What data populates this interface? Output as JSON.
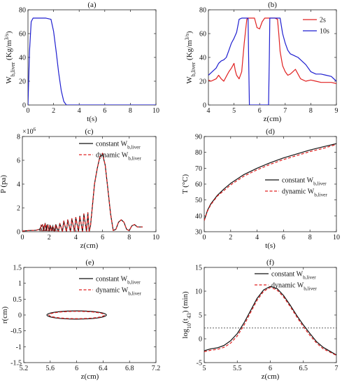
{
  "chart_data": [
    {
      "panel": "(a)",
      "type": "line",
      "xlabel": "t(s)",
      "ylabel": "W_b,liver (Kg/m^3/s)",
      "xlim": [
        0,
        10
      ],
      "ylim": [
        0,
        80
      ],
      "xticks": [
        0,
        2,
        4,
        6,
        8,
        10
      ],
      "yticks": [
        0,
        20,
        40,
        60,
        80
      ],
      "series": [
        {
          "color": "#1f1fd0",
          "style": "solid",
          "x": [
            0,
            0.12,
            0.25,
            0.4,
            0.6,
            1.4,
            1.8,
            2.0,
            2.2,
            2.4,
            2.6,
            2.8,
            3.0,
            10
          ],
          "y": [
            0,
            45,
            70,
            73,
            73,
            73,
            72,
            62,
            45,
            27,
            12,
            3,
            0,
            0
          ]
        }
      ]
    },
    {
      "panel": "(b)",
      "type": "line",
      "xlabel": "z(cm)",
      "ylabel": "W_b,liver (Kg/m^3/s)",
      "xlim": [
        4,
        9
      ],
      "ylim": [
        0,
        80
      ],
      "xticks": [
        4,
        5,
        6,
        7,
        8,
        9
      ],
      "yticks": [
        0,
        20,
        40,
        60,
        80
      ],
      "legend": "top-right",
      "series": [
        {
          "name": "2s",
          "color": "#e02020",
          "x": [
            4,
            4.1,
            4.2,
            4.3,
            4.4,
            4.5,
            4.6,
            4.7,
            4.8,
            4.9,
            5.0,
            5.05,
            5.1,
            5.2,
            5.3,
            5.4,
            5.5,
            5.55,
            5.6,
            5.7,
            5.8,
            5.9,
            6.0,
            6.1,
            6.2,
            6.3,
            6.4,
            6.5,
            6.6,
            6.7,
            6.75,
            6.8,
            6.9,
            7.0,
            7.1,
            7.2,
            7.3,
            7.4,
            7.5,
            7.6,
            7.8,
            8.0,
            8.2,
            8.4,
            8.6,
            8.8,
            9.0
          ],
          "y": [
            21,
            20,
            21,
            22,
            25,
            22,
            20,
            24,
            28,
            31,
            35,
            29,
            25,
            22,
            28,
            52,
            72,
            73,
            73,
            73,
            73,
            65,
            64,
            70,
            73,
            73,
            73,
            73,
            73,
            72,
            60,
            45,
            33,
            28,
            25,
            26,
            28,
            30,
            26,
            22,
            20,
            21,
            20,
            19,
            19,
            19,
            18
          ]
        },
        {
          "name": "10s",
          "color": "#1f1fd0",
          "x": [
            4,
            4.1,
            4.2,
            4.3,
            4.4,
            4.5,
            4.6,
            4.7,
            4.8,
            4.9,
            5.0,
            5.1,
            5.2,
            5.3,
            5.4,
            5.5,
            5.55,
            5.57,
            5.6,
            5.65,
            5.7,
            6.3,
            6.35,
            6.38,
            6.4,
            6.5,
            6.6,
            6.7,
            6.8,
            6.9,
            7.0,
            7.1,
            7.2,
            7.3,
            7.4,
            7.5,
            7.6,
            7.8,
            8.0,
            8.2,
            8.4,
            8.6,
            8.8,
            9.0
          ],
          "y": [
            25,
            27,
            29,
            31,
            35,
            37,
            38,
            40,
            46,
            52,
            56,
            61,
            72,
            73,
            73,
            73,
            73,
            40,
            0,
            0,
            0,
            0,
            0,
            40,
            73,
            73,
            73,
            73,
            73,
            60,
            52,
            46,
            43,
            42,
            41,
            40,
            38,
            34,
            28,
            26,
            26,
            25,
            24,
            20
          ]
        }
      ]
    },
    {
      "panel": "(c)",
      "type": "line",
      "xlabel": "z(cm)",
      "ylabel": "P (pa)",
      "multiplier": "×10^6",
      "xlim": [
        0,
        10
      ],
      "ylim": [
        0,
        8
      ],
      "xticks": [
        0,
        2,
        4,
        6,
        8,
        10
      ],
      "yticks": [
        0,
        2,
        4,
        6,
        8
      ],
      "legend": "top-right",
      "series": [
        {
          "name": "constant W_b,liver",
          "color": "#111111",
          "style": "solid",
          "x": [
            0,
            0.5,
            1.0,
            1.3,
            1.5,
            1.6,
            1.7,
            1.8,
            1.9,
            2.0,
            2.1,
            2.2,
            2.3,
            2.4,
            2.5,
            2.7,
            2.8,
            3.0,
            3.1,
            3.3,
            3.4,
            3.6,
            3.7,
            3.9,
            4.0,
            4.2,
            4.3,
            4.5,
            4.6,
            4.8,
            4.9,
            5.0,
            5.1,
            5.3,
            5.4,
            5.6,
            5.8,
            6.0,
            6.2,
            6.4,
            6.6,
            6.8,
            7.0,
            7.2,
            7.4,
            7.6,
            7.8,
            8.0,
            8.2,
            8.4,
            8.6,
            8.8,
            9.0
          ],
          "y": [
            0.05,
            0.1,
            0.12,
            0.2,
            0.6,
            0.1,
            0.7,
            0.1,
            0.6,
            0.1,
            0.5,
            0.1,
            0.4,
            0.05,
            0.6,
            0.0,
            0.7,
            0.0,
            0.9,
            0.0,
            1.0,
            0.0,
            1.1,
            0.0,
            1.2,
            0.0,
            1.3,
            0.0,
            1.5,
            0.0,
            1.6,
            0.0,
            0.5,
            2.8,
            4.0,
            5.3,
            6.3,
            6.5,
            5.6,
            3.6,
            1.5,
            0.1,
            0.2,
            0.8,
            1.0,
            0.8,
            0.2,
            0.1,
            0.5,
            0.6,
            0.4,
            0.4,
            0.4
          ]
        },
        {
          "name": "dynamic W_b,liver",
          "color": "#e02020",
          "style": "dashed",
          "x": [
            0,
            0.5,
            1.0,
            1.3,
            1.5,
            1.6,
            1.7,
            1.8,
            1.9,
            2.0,
            2.1,
            2.2,
            2.3,
            2.4,
            2.5,
            2.7,
            2.8,
            3.0,
            3.1,
            3.3,
            3.4,
            3.6,
            3.7,
            3.9,
            4.0,
            4.2,
            4.3,
            4.5,
            4.6,
            4.8,
            4.9,
            5.0,
            5.1,
            5.3,
            5.4,
            5.6,
            5.8,
            6.0,
            6.2,
            6.4,
            6.6,
            6.8,
            7.0,
            7.2,
            7.4,
            7.6,
            7.8,
            8.0,
            8.2,
            8.4,
            8.6,
            8.8,
            9.0
          ],
          "y": [
            0.05,
            0.1,
            0.12,
            0.2,
            0.6,
            0.1,
            0.7,
            0.1,
            0.6,
            0.1,
            0.5,
            0.1,
            0.4,
            0.05,
            0.6,
            0.0,
            0.7,
            0.0,
            0.9,
            0.0,
            1.0,
            0.0,
            1.1,
            0.0,
            1.2,
            0.0,
            1.3,
            0.0,
            1.5,
            0.0,
            1.6,
            0.0,
            0.5,
            2.8,
            4.0,
            5.3,
            6.3,
            6.6,
            5.6,
            3.6,
            1.5,
            0.1,
            0.2,
            0.8,
            1.0,
            0.8,
            0.2,
            0.1,
            0.5,
            0.6,
            0.4,
            0.4,
            0.4
          ]
        }
      ]
    },
    {
      "panel": "(d)",
      "type": "line",
      "xlabel": "t(s)",
      "ylabel": "T (°C)",
      "xlim": [
        0,
        10
      ],
      "ylim": [
        30,
        90
      ],
      "xticks": [
        0,
        2,
        4,
        6,
        8,
        10
      ],
      "yticks": [
        30,
        40,
        50,
        60,
        70,
        80,
        90
      ],
      "legend": "center-right",
      "series": [
        {
          "name": "constant W_b,liver",
          "color": "#111111",
          "style": "solid",
          "x": [
            0,
            0.25,
            0.5,
            1,
            1.5,
            2,
            3,
            4,
            5,
            6,
            7,
            8,
            9,
            10
          ],
          "y": [
            37,
            43.5,
            47.5,
            53,
            57,
            60.5,
            66,
            70,
            73.5,
            76.5,
            79,
            81.5,
            83.5,
            85.5
          ]
        },
        {
          "name": "dynamic W_b,liver",
          "color": "#e02020",
          "style": "dashed",
          "x": [
            0,
            0.25,
            0.5,
            1,
            1.5,
            2,
            3,
            4,
            5,
            6,
            7,
            8,
            9,
            10
          ],
          "y": [
            37,
            43,
            47,
            52.5,
            56,
            59.5,
            65,
            69,
            72.5,
            75.5,
            78,
            80.5,
            82.5,
            85
          ]
        }
      ]
    },
    {
      "panel": "(e)",
      "type": "line",
      "xlabel": "z(cm)",
      "ylabel": "r(cm)",
      "xlim": [
        5.2,
        7.2
      ],
      "ylim": [
        -1.5,
        1.5
      ],
      "xticks": [
        5.2,
        5.6,
        6,
        6.4,
        6.8,
        7.2
      ],
      "xticklabels": [
        "5.2",
        "5.6",
        "6",
        "6.4",
        "6.8",
        "7.2"
      ],
      "yticks": [
        -1.5,
        -1,
        -0.5,
        0,
        0.5,
        1,
        1.5
      ],
      "legend": "top-right",
      "series": [
        {
          "name": "constant W_b,liver",
          "color": "#111111",
          "style": "solid",
          "shape": "ellipse",
          "center": [
            6.0,
            0
          ],
          "half_width_z": 0.45,
          "half_height_r": 0.13
        },
        {
          "name": "dynamic W_b,liver",
          "color": "#e02020",
          "style": "dashed",
          "shape": "ellipse",
          "center": [
            6.0,
            0
          ],
          "half_width_z": 0.42,
          "half_height_r": 0.115
        }
      ]
    },
    {
      "panel": "(f)",
      "type": "line",
      "xlabel": "z(cm)",
      "ylabel": "log10(t43) (min)",
      "xlim": [
        5,
        7
      ],
      "ylim": [
        -5,
        15
      ],
      "xticks": [
        5,
        5.5,
        6,
        6.5,
        7
      ],
      "yticks": [
        -5,
        0,
        5,
        10,
        15
      ],
      "legend": "top-right",
      "threshold": 2.3,
      "series": [
        {
          "name": "constant W_b,liver",
          "color": "#111111",
          "style": "solid",
          "x": [
            5.0,
            5.1,
            5.2,
            5.3,
            5.4,
            5.5,
            5.6,
            5.7,
            5.8,
            5.9,
            6.0,
            6.1,
            6.2,
            6.3,
            6.4,
            6.5,
            6.6,
            6.7,
            6.8,
            6.9,
            7.0
          ],
          "y": [
            -2.5,
            -2.1,
            -1.9,
            -1.4,
            -0.4,
            1.1,
            3.3,
            5.9,
            8.5,
            10.3,
            11.0,
            10.6,
            9.1,
            7.1,
            4.9,
            2.9,
            1.1,
            -0.6,
            -1.8,
            -2.6,
            -3.4
          ]
        },
        {
          "name": "dynamic W_b,liver",
          "color": "#e02020",
          "style": "dashed",
          "x": [
            5.0,
            5.1,
            5.2,
            5.3,
            5.4,
            5.5,
            5.6,
            5.7,
            5.8,
            5.9,
            6.0,
            6.1,
            6.2,
            6.3,
            6.4,
            6.5,
            6.6,
            6.7,
            6.8,
            6.9,
            7.0
          ],
          "y": [
            -2.7,
            -2.4,
            -2.2,
            -1.8,
            -0.9,
            0.6,
            2.8,
            5.5,
            8.1,
            10.0,
            10.8,
            10.3,
            8.8,
            6.8,
            4.6,
            2.5,
            0.7,
            -0.9,
            -2.1,
            -2.8,
            -3.5
          ]
        }
      ]
    }
  ]
}
